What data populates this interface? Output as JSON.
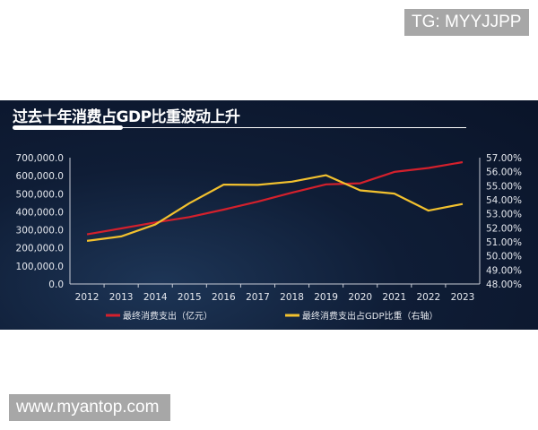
{
  "watermarks": {
    "top_right": "TG: MYYJJPP",
    "bottom_left": "www.myantop.com"
  },
  "chart_data": {
    "type": "line",
    "title": "过去十年消费占GDP比重波动上升",
    "categories": [
      "2012",
      "2013",
      "2014",
      "2015",
      "2016",
      "2017",
      "2018",
      "2019",
      "2020",
      "2021",
      "2022",
      "2023"
    ],
    "y_left": {
      "ticks": [
        "0.0",
        "100,000.0",
        "200,000.0",
        "300,000.0",
        "400,000.0",
        "500,000.0",
        "600,000.0",
        "700,000.0"
      ],
      "range": [
        0,
        700000
      ]
    },
    "y_right": {
      "ticks": [
        "48.00%",
        "49.00%",
        "50.00%",
        "51.00%",
        "52.00%",
        "53.00%",
        "54.00%",
        "55.00%",
        "56.00%",
        "57.00%"
      ],
      "range": [
        48,
        57
      ]
    },
    "grid": false,
    "legend_position": "bottom",
    "series": [
      {
        "name": "最终消费支出（亿元）",
        "axis": "left",
        "color": "#d4202c",
        "values": [
          275000,
          308000,
          341000,
          371000,
          412000,
          456000,
          506000,
          552000,
          558000,
          621000,
          643000,
          675000
        ]
      },
      {
        "name": "最终消费支出占GDP比重（右轴）",
        "axis": "right",
        "color": "#f2c12e",
        "values": [
          51.07,
          51.39,
          52.24,
          53.76,
          55.08,
          55.06,
          55.29,
          55.75,
          54.67,
          54.44,
          53.23,
          53.7
        ]
      }
    ]
  }
}
